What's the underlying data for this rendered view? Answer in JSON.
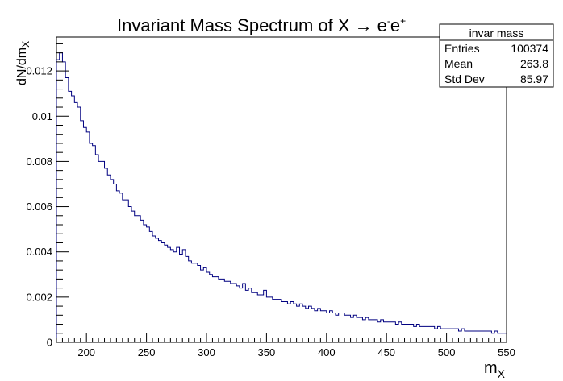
{
  "chart_data": {
    "type": "histogram",
    "title_main": "Invariant Mass Spectrum of X ",
    "title_arrow": "→",
    "title_particle1": "e",
    "title_charge1": "-",
    "title_particle2": "e",
    "title_charge2": "+",
    "xlabel_main": "m",
    "xlabel_sub": "X",
    "ylabel_main": "dN/dm",
    "ylabel_sub": "X",
    "xlim": [
      175,
      550
    ],
    "ylim": [
      0,
      0.0135
    ],
    "x_ticks": [
      200,
      250,
      300,
      350,
      400,
      450,
      500,
      550
    ],
    "y_ticks": [
      0,
      0.002,
      0.004,
      0.006,
      0.008,
      0.01,
      0.012
    ],
    "y_tick_labels": [
      "0",
      "0.002",
      "0.004",
      "0.006",
      "0.008",
      "0.01",
      "0.012"
    ],
    "line_color": "#000080",
    "bin_width": 2.5,
    "bins_start": 175,
    "values": [
      0.0125,
      0.0128,
      0.0124,
      0.0117,
      0.0111,
      0.0109,
      0.0106,
      0.0104,
      0.0098,
      0.0095,
      0.0093,
      0.0088,
      0.0087,
      0.0083,
      0.008,
      0.008,
      0.0077,
      0.0074,
      0.0072,
      0.007,
      0.0067,
      0.0066,
      0.0063,
      0.0063,
      0.006,
      0.0058,
      0.0056,
      0.0056,
      0.0054,
      0.0052,
      0.0051,
      0.0049,
      0.0047,
      0.0046,
      0.0045,
      0.0044,
      0.0043,
      0.0042,
      0.0041,
      0.004,
      0.0042,
      0.0039,
      0.0041,
      0.0038,
      0.0036,
      0.0035,
      0.0035,
      0.0034,
      0.0032,
      0.0033,
      0.0031,
      0.003,
      0.0029,
      0.0029,
      0.0028,
      0.0028,
      0.0027,
      0.0027,
      0.0026,
      0.0026,
      0.0025,
      0.0024,
      0.0026,
      0.0023,
      0.0024,
      0.0022,
      0.0022,
      0.0021,
      0.0021,
      0.0023,
      0.002,
      0.002,
      0.0019,
      0.0019,
      0.0019,
      0.0018,
      0.0018,
      0.0017,
      0.0018,
      0.0017,
      0.0016,
      0.0017,
      0.0016,
      0.0015,
      0.0016,
      0.0015,
      0.0014,
      0.0015,
      0.0014,
      0.0014,
      0.0013,
      0.0014,
      0.0013,
      0.0012,
      0.0013,
      0.0013,
      0.0012,
      0.0012,
      0.0011,
      0.0012,
      0.0011,
      0.0011,
      0.001,
      0.0011,
      0.001,
      0.001,
      0.001,
      0.0009,
      0.001,
      0.0009,
      0.0009,
      0.0009,
      0.0009,
      0.0008,
      0.0009,
      0.0008,
      0.0008,
      0.0008,
      0.0008,
      0.0007,
      0.0008,
      0.0007,
      0.0007,
      0.0007,
      0.0007,
      0.0007,
      0.0006,
      0.0007,
      0.0006,
      0.0006,
      0.0006,
      0.0006,
      0.0006,
      0.0006,
      0.0005,
      0.0006,
      0.0005,
      0.0005,
      0.0005,
      0.0005,
      0.0005,
      0.0005,
      0.0005,
      0.0005,
      0.0005,
      0.0004,
      0.0005,
      0.0004,
      0.0004,
      0.0004
    ]
  },
  "stats_box": {
    "title": "invar mass",
    "rows": [
      {
        "label": "Entries",
        "value": "100374"
      },
      {
        "label": "Mean",
        "value": "263.8"
      },
      {
        "label": "Std Dev",
        "value": "85.97"
      }
    ]
  }
}
